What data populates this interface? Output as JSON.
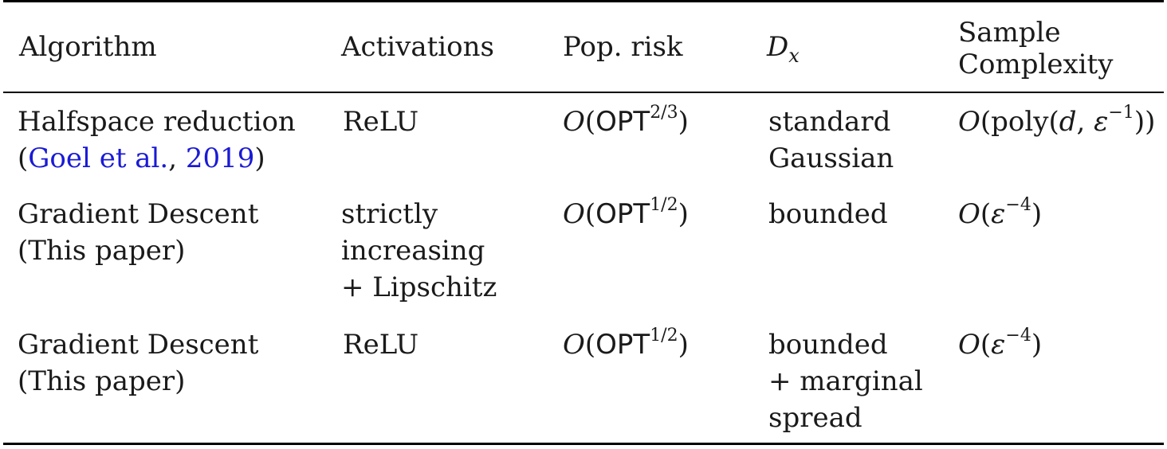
{
  "table": {
    "headers": {
      "algorithm": "Algorithm",
      "activations": "Activations",
      "pop_risk": "Pop. risk",
      "dx_symbol": "D",
      "dx_sub": "x",
      "sample_complexity_1": "Sample",
      "sample_complexity_2": "Complexity"
    },
    "rows": [
      {
        "algorithm_1": "Halfspace reduction",
        "citation_open": "(",
        "citation_authors": "Goel et al.",
        "citation_sep": ", ",
        "citation_year": "2019",
        "citation_close": ")",
        "activations": [
          "ReLU"
        ],
        "risk_O": "O",
        "risk_paren_open": "(",
        "risk_opt": "OPT",
        "risk_exp": "2/3",
        "risk_paren_close": ")",
        "dx": [
          "standard",
          "Gaussian"
        ],
        "sample_prefix": "O",
        "sample_mid": "(poly(",
        "sample_d": "d",
        "sample_comma": ", ",
        "sample_eps": "ε",
        "sample_exp": "−1",
        "sample_close": "))"
      },
      {
        "algorithm": [
          "Gradient Descent",
          "(This paper)"
        ],
        "activations": [
          "strictly",
          "increasing",
          "+ Lipschitz"
        ],
        "risk_O": "O",
        "risk_paren_open": "(",
        "risk_opt": "OPT",
        "risk_exp": "1/2",
        "risk_paren_close": ")",
        "dx": [
          "bounded"
        ],
        "sample_prefix": "O",
        "sample_open": "(",
        "sample_eps": "ε",
        "sample_exp": "−4",
        "sample_close": ")"
      },
      {
        "algorithm": [
          "Gradient Descent",
          "(This paper)"
        ],
        "activations": [
          "ReLU"
        ],
        "risk_O": "O",
        "risk_paren_open": "(",
        "risk_opt": "OPT",
        "risk_exp": "1/2",
        "risk_paren_close": ")",
        "dx": [
          "bounded",
          "+ marginal",
          "spread"
        ],
        "sample_prefix": "O",
        "sample_open": "(",
        "sample_eps": "ε",
        "sample_exp": "−4",
        "sample_close": ")"
      }
    ]
  }
}
